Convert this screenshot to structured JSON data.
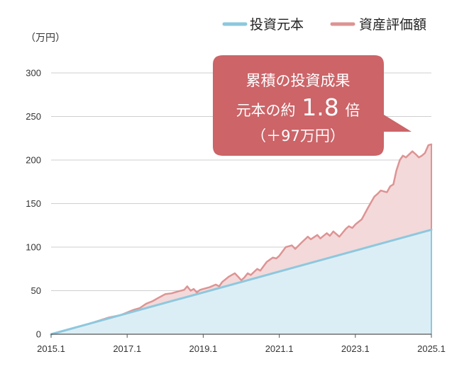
{
  "chart_data": {
    "type": "area",
    "unit_label": "（万円）",
    "y_ticks": [
      0,
      50,
      100,
      150,
      200,
      250,
      300
    ],
    "y_tick_labels": [
      "0",
      "50",
      "100",
      "150",
      "200",
      "250",
      "300"
    ],
    "x_tick_labels": [
      "2015.1",
      "2017.1",
      "2019.1",
      "2021.1",
      "2023.1",
      "2025.1"
    ],
    "x_ticks": [
      2015.0,
      2017.0,
      2019.0,
      2021.0,
      2023.0,
      2025.0
    ],
    "xlim": [
      2015.0,
      2025.0
    ],
    "ylim": [
      0,
      300
    ],
    "legend_position": "top-right",
    "grid": true,
    "series": [
      {
        "name": "投資元本",
        "color": "#8dc8de",
        "fill": "#dceef5",
        "x": [
          2015.0,
          2025.0
        ],
        "values": [
          0,
          120
        ]
      },
      {
        "name": "資産評価額",
        "color": "#dd9494",
        "fill": "#f3d9da",
        "x": [
          2015.0,
          2016.0,
          2016.5,
          2016.83,
          2017.0,
          2017.17,
          2017.33,
          2017.5,
          2017.67,
          2017.83,
          2018.0,
          2018.17,
          2018.33,
          2018.5,
          2018.58,
          2018.67,
          2018.75,
          2018.83,
          2018.92,
          2019.0,
          2019.17,
          2019.33,
          2019.42,
          2019.5,
          2019.67,
          2019.83,
          2019.92,
          2020.0,
          2020.08,
          2020.17,
          2020.25,
          2020.42,
          2020.5,
          2020.67,
          2020.83,
          2020.92,
          2021.0,
          2021.17,
          2021.33,
          2021.42,
          2021.58,
          2021.75,
          2021.83,
          2022.0,
          2022.08,
          2022.25,
          2022.33,
          2022.42,
          2022.58,
          2022.75,
          2022.83,
          2022.92,
          2023.0,
          2023.17,
          2023.33,
          2023.5,
          2023.58,
          2023.67,
          2023.83,
          2023.92,
          2024.0,
          2024.08,
          2024.17,
          2024.25,
          2024.33,
          2024.5,
          2024.58,
          2024.67,
          2024.75,
          2024.83,
          2024.92,
          2025.0
        ],
        "values": [
          0,
          12,
          19,
          22,
          25,
          28,
          30,
          35,
          38,
          42,
          46,
          47,
          49,
          51,
          55,
          50,
          52,
          48,
          51,
          52,
          54,
          57,
          55,
          60,
          66,
          70,
          66,
          62,
          65,
          70,
          68,
          75,
          73,
          83,
          88,
          87,
          90,
          100,
          102,
          98,
          105,
          112,
          109,
          114,
          110,
          116,
          113,
          118,
          112,
          121,
          124,
          122,
          126,
          132,
          145,
          158,
          161,
          165,
          163,
          170,
          172,
          188,
          200,
          205,
          203,
          210,
          207,
          203,
          205,
          208,
          217,
          218
        ]
      }
    ],
    "annotation": {
      "line1": "累積の投資成果",
      "line2_prefix": "元本の約",
      "line2_number": "1.8",
      "line2_suffix": "倍",
      "line3": "（＋97万円）",
      "fill": "#cc6468"
    }
  }
}
